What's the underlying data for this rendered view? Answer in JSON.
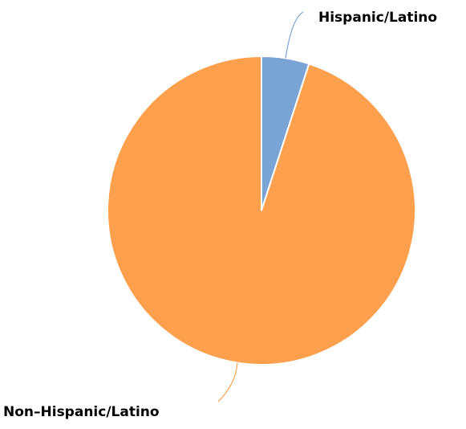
{
  "chart_data": {
    "type": "pie",
    "title": "",
    "slices": [
      {
        "label": "Hispanic/Latino",
        "value": 5,
        "color": "#7aa3d6"
      },
      {
        "label": "Non–Hispanic/Latino",
        "value": 95,
        "color": "#fda04d"
      }
    ],
    "start_angle": "12 o'clock",
    "direction": "clockwise",
    "legend": "none",
    "labels": "outside with leader lines",
    "slice_border_color": "#ffffff"
  }
}
